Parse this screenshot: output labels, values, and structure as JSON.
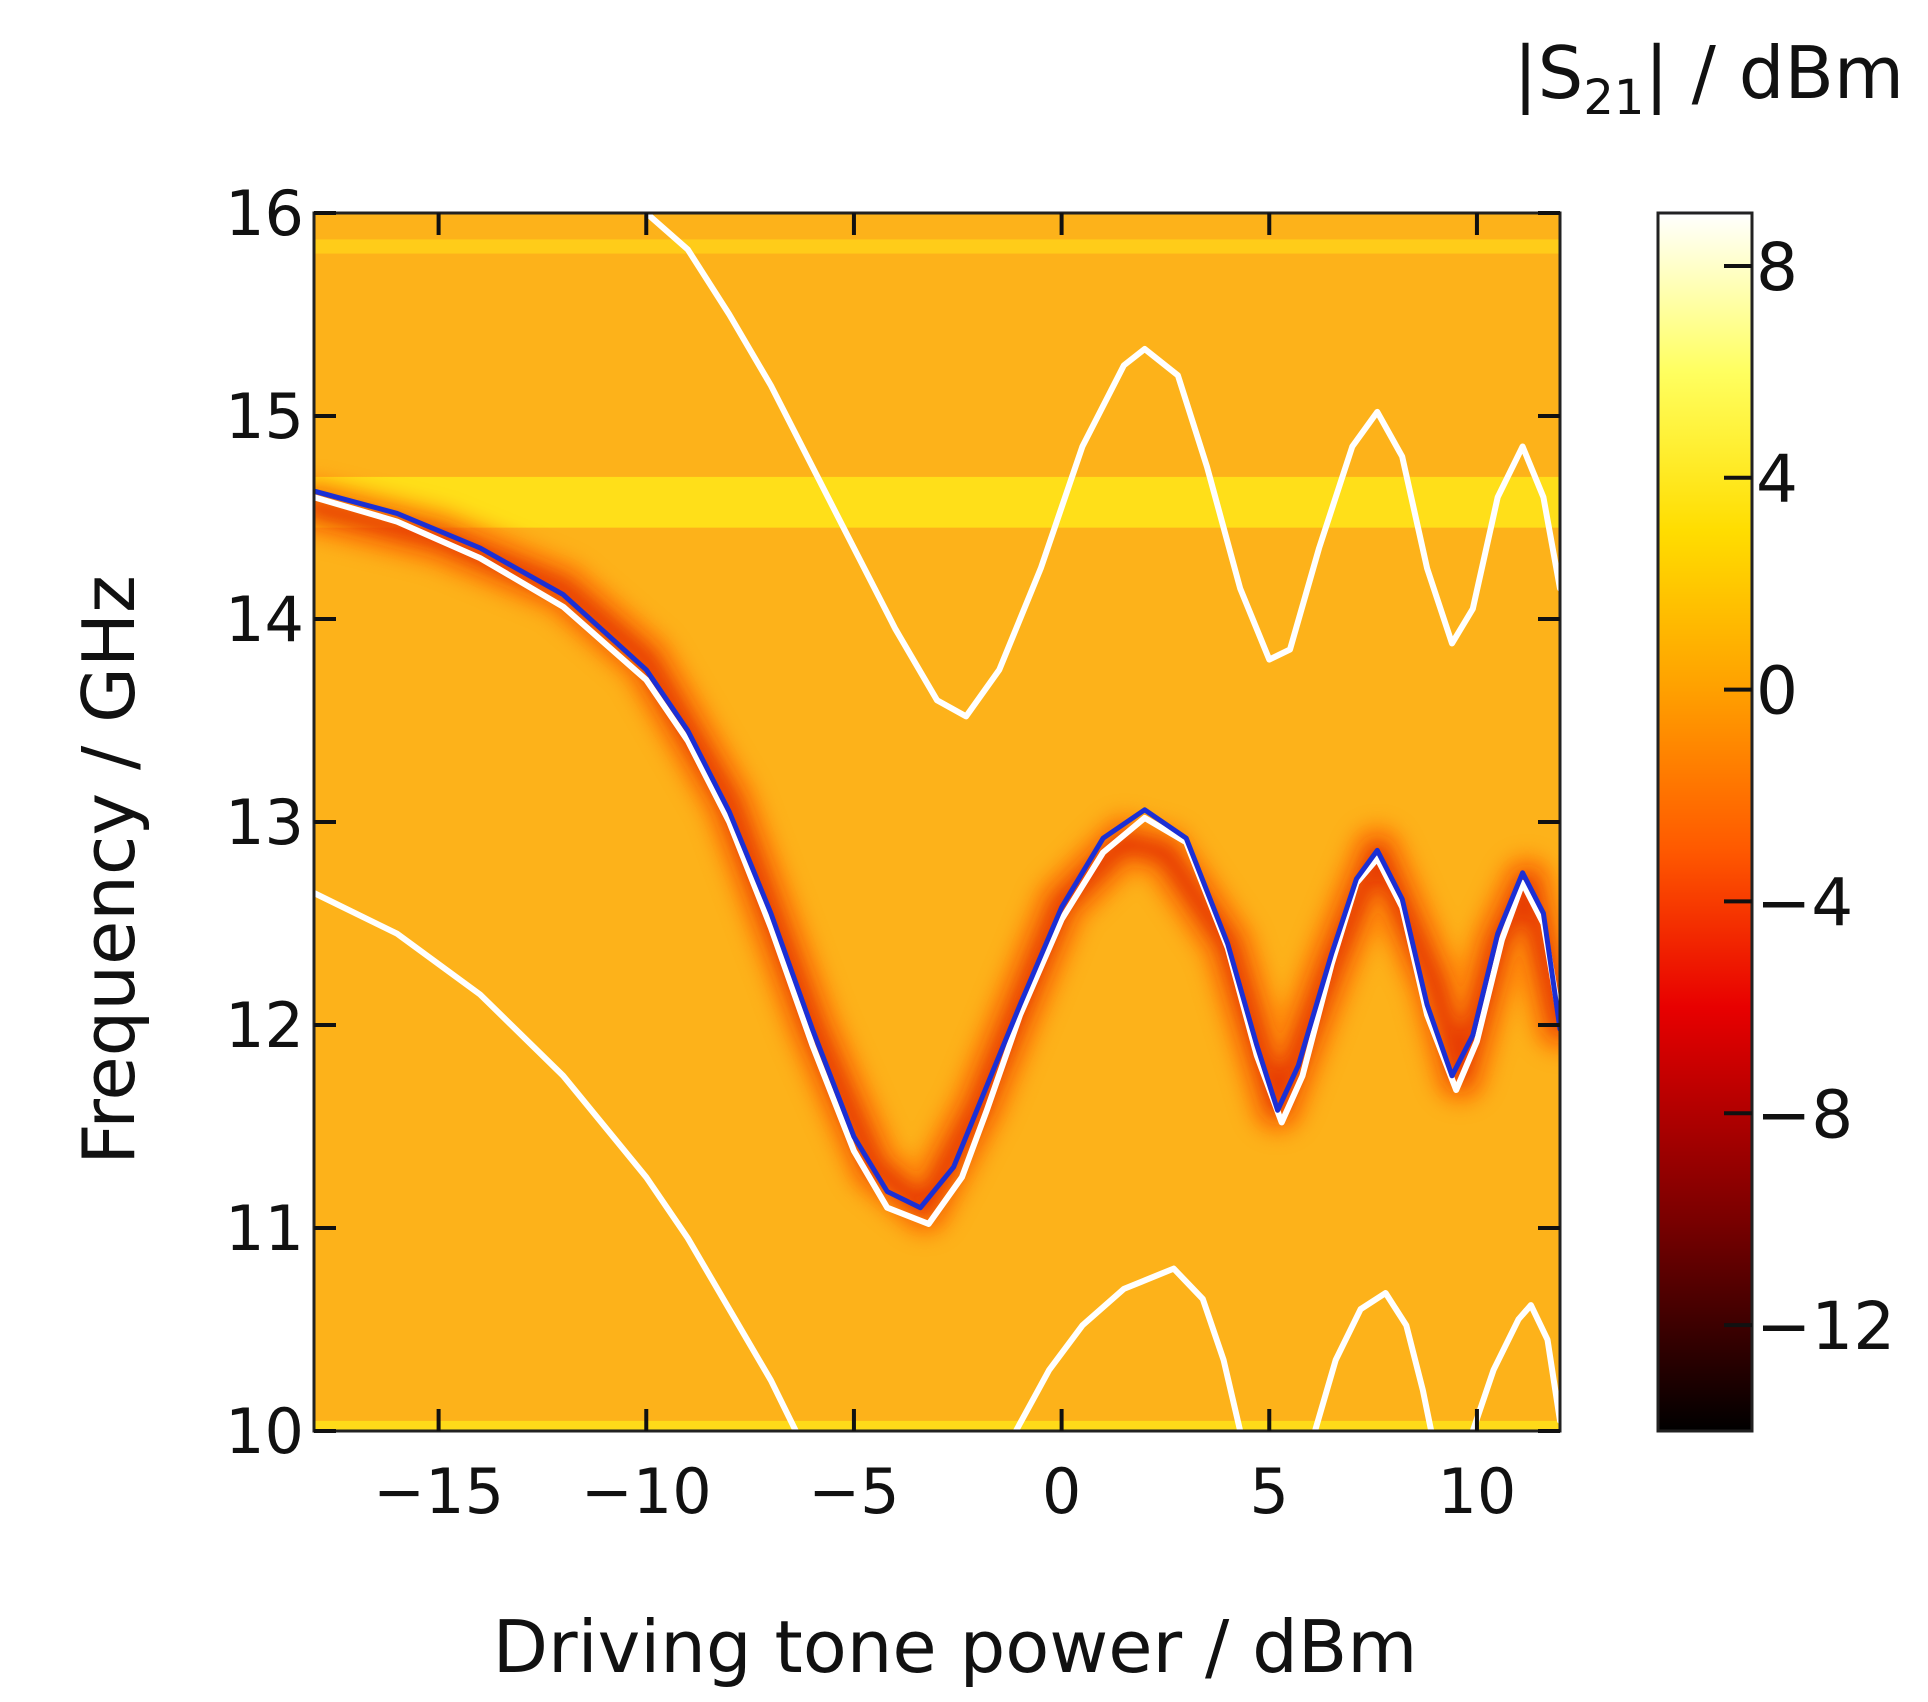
{
  "chart_data": {
    "type": "heatmap",
    "xlabel": "Driving tone power / dBm",
    "ylabel": "Frequency / GHz",
    "colorbar_label": "|S21| / dBm",
    "colorbar_label_parts": {
      "pre": "|S",
      "sub": "21",
      "post": "| / dBm"
    },
    "xlim": [
      -18,
      12
    ],
    "ylim": [
      10,
      16
    ],
    "xticks": [
      -15,
      -10,
      -5,
      0,
      5,
      10
    ],
    "xtick_labels": [
      "−15",
      "−10",
      "−5",
      "0",
      "5",
      "10"
    ],
    "yticks": [
      10,
      11,
      12,
      13,
      14,
      15,
      16
    ],
    "ytick_labels": [
      "10",
      "11",
      "12",
      "13",
      "14",
      "15",
      "16"
    ],
    "colorbar": {
      "range": [
        -14,
        9
      ],
      "ticks": [
        8,
        4,
        0,
        -4,
        -8,
        -12
      ],
      "tick_labels": [
        "8",
        "4",
        "0",
        "−4",
        "−8",
        "−12"
      ],
      "colormap": "hot",
      "stops": [
        {
          "value": -14,
          "color": "#000000"
        },
        {
          "value": -10,
          "color": "#7a0000"
        },
        {
          "value": -6,
          "color": "#e80000"
        },
        {
          "value": -3,
          "color": "#ff5a00"
        },
        {
          "value": 0,
          "color": "#ffa000"
        },
        {
          "value": 3,
          "color": "#ffdd00"
        },
        {
          "value": 6,
          "color": "#ffff60"
        },
        {
          "value": 9,
          "color": "#ffffff"
        }
      ]
    },
    "background": {
      "base_color": "#fdb21a",
      "horizontal_bands": [
        {
          "y": [
            15.8,
            15.87
          ],
          "color": "#ffd01a",
          "label": "bright line near 15.85 GHz"
        },
        {
          "y": [
            14.45,
            14.7
          ],
          "color": "#ffe61a",
          "label": "bright band near 14.55 GHz"
        },
        {
          "y": [
            10.0,
            10.05
          ],
          "color": "#ffe01a",
          "label": "bright line near 10 GHz"
        }
      ]
    },
    "dark_resonance_trace": {
      "description": "measured dark (low |S21|) resonance following the blue fit",
      "points": [
        [
          -18,
          14.55
        ],
        [
          -15,
          14.4
        ],
        [
          -12,
          14.15
        ],
        [
          -10,
          13.8
        ],
        [
          -8,
          13.1
        ],
        [
          -6,
          12.0
        ],
        [
          -4.5,
          11.3
        ],
        [
          -3.3,
          11.1
        ],
        [
          -2,
          11.6
        ],
        [
          0,
          12.6
        ],
        [
          1.5,
          12.9
        ],
        [
          2.5,
          12.85
        ],
        [
          4,
          12.4
        ],
        [
          5.2,
          11.6
        ],
        [
          6.5,
          12.3
        ],
        [
          7.6,
          12.85
        ],
        [
          9,
          12.2
        ],
        [
          9.6,
          11.75
        ],
        [
          10.5,
          12.4
        ],
        [
          11.2,
          12.7
        ],
        [
          12,
          12.0
        ]
      ]
    },
    "series": [
      {
        "name": "fit (blue)",
        "color": "#1b2fd4",
        "points": [
          [
            -18,
            14.63
          ],
          [
            -16,
            14.52
          ],
          [
            -14,
            14.35
          ],
          [
            -12,
            14.12
          ],
          [
            -10,
            13.75
          ],
          [
            -9,
            13.45
          ],
          [
            -8,
            13.05
          ],
          [
            -7,
            12.55
          ],
          [
            -6,
            11.98
          ],
          [
            -5,
            11.45
          ],
          [
            -4.2,
            11.18
          ],
          [
            -3.4,
            11.1
          ],
          [
            -2.6,
            11.3
          ],
          [
            -2,
            11.6
          ],
          [
            -1,
            12.1
          ],
          [
            0,
            12.58
          ],
          [
            1,
            12.92
          ],
          [
            2,
            13.06
          ],
          [
            3,
            12.92
          ],
          [
            4,
            12.4
          ],
          [
            4.7,
            11.9
          ],
          [
            5.2,
            11.58
          ],
          [
            5.7,
            11.8
          ],
          [
            6.5,
            12.35
          ],
          [
            7.1,
            12.72
          ],
          [
            7.6,
            12.86
          ],
          [
            8.2,
            12.62
          ],
          [
            8.8,
            12.1
          ],
          [
            9.4,
            11.75
          ],
          [
            9.9,
            11.95
          ],
          [
            10.5,
            12.45
          ],
          [
            11.1,
            12.75
          ],
          [
            11.6,
            12.55
          ],
          [
            12,
            11.98
          ]
        ]
      },
      {
        "name": "upper sideband (white)",
        "color": "#ffffff",
        "points": [
          [
            -10,
            16.0
          ],
          [
            -9,
            15.82
          ],
          [
            -8,
            15.5
          ],
          [
            -7,
            15.15
          ],
          [
            -6,
            14.75
          ],
          [
            -5,
            14.35
          ],
          [
            -4,
            13.95
          ],
          [
            -3,
            13.6
          ],
          [
            -2.3,
            13.52
          ],
          [
            -1.5,
            13.75
          ],
          [
            -0.5,
            14.25
          ],
          [
            0.5,
            14.85
          ],
          [
            1.5,
            15.25
          ],
          [
            2,
            15.33
          ],
          [
            2.8,
            15.2
          ],
          [
            3.5,
            14.75
          ],
          [
            4.3,
            14.15
          ],
          [
            5,
            13.8
          ],
          [
            5.5,
            13.85
          ],
          [
            6.2,
            14.35
          ],
          [
            7,
            14.85
          ],
          [
            7.6,
            15.02
          ],
          [
            8.2,
            14.8
          ],
          [
            8.8,
            14.25
          ],
          [
            9.4,
            13.88
          ],
          [
            9.9,
            14.05
          ],
          [
            10.5,
            14.6
          ],
          [
            11.1,
            14.85
          ],
          [
            11.6,
            14.6
          ],
          [
            12,
            14.15
          ]
        ]
      },
      {
        "name": "middle branch (white)",
        "color": "#ffffff",
        "points": [
          [
            -18,
            14.6
          ],
          [
            -16,
            14.48
          ],
          [
            -14,
            14.3
          ],
          [
            -12,
            14.06
          ],
          [
            -10,
            13.7
          ],
          [
            -9,
            13.4
          ],
          [
            -8,
            13.0
          ],
          [
            -7,
            12.48
          ],
          [
            -6,
            11.9
          ],
          [
            -5,
            11.38
          ],
          [
            -4.2,
            11.1
          ],
          [
            -3.2,
            11.02
          ],
          [
            -2.4,
            11.25
          ],
          [
            -1.8,
            11.58
          ],
          [
            -1,
            12.05
          ],
          [
            0,
            12.52
          ],
          [
            1,
            12.85
          ],
          [
            2,
            13.02
          ],
          [
            3,
            12.9
          ],
          [
            4,
            12.38
          ],
          [
            4.7,
            11.85
          ],
          [
            5.3,
            11.52
          ],
          [
            5.8,
            11.75
          ],
          [
            6.5,
            12.3
          ],
          [
            7.1,
            12.7
          ],
          [
            7.6,
            12.82
          ],
          [
            8.2,
            12.58
          ],
          [
            8.8,
            12.05
          ],
          [
            9.5,
            11.68
          ],
          [
            10,
            11.92
          ],
          [
            10.6,
            12.42
          ],
          [
            11.1,
            12.7
          ],
          [
            11.6,
            12.5
          ],
          [
            12,
            12.02
          ]
        ]
      },
      {
        "name": "lower sideband (white)",
        "color": "#ffffff",
        "points": [
          [
            -18,
            12.65
          ],
          [
            -16,
            12.45
          ],
          [
            -14,
            12.15
          ],
          [
            -12,
            11.75
          ],
          [
            -10,
            11.25
          ],
          [
            -9,
            10.95
          ],
          [
            -8,
            10.6
          ],
          [
            -7,
            10.25
          ],
          [
            -6.4,
            10.0
          ]
        ]
      },
      {
        "name": "lower lobe 1 (white)",
        "color": "#ffffff",
        "points": [
          [
            -1.1,
            10.0
          ],
          [
            -0.3,
            10.3
          ],
          [
            0.5,
            10.52
          ],
          [
            1.5,
            10.7
          ],
          [
            2.7,
            10.8
          ],
          [
            3.4,
            10.65
          ],
          [
            3.9,
            10.35
          ],
          [
            4.3,
            10.0
          ]
        ]
      },
      {
        "name": "lower lobe 2 (white)",
        "color": "#ffffff",
        "points": [
          [
            6.1,
            10.0
          ],
          [
            6.6,
            10.35
          ],
          [
            7.2,
            10.6
          ],
          [
            7.8,
            10.68
          ],
          [
            8.3,
            10.52
          ],
          [
            8.7,
            10.2
          ],
          [
            8.9,
            10.0
          ]
        ]
      },
      {
        "name": "lower lobe 3 (white)",
        "color": "#ffffff",
        "points": [
          [
            9.9,
            10.0
          ],
          [
            10.4,
            10.3
          ],
          [
            11,
            10.55
          ],
          [
            11.3,
            10.62
          ],
          [
            11.7,
            10.45
          ],
          [
            12,
            10.05
          ]
        ]
      }
    ]
  }
}
